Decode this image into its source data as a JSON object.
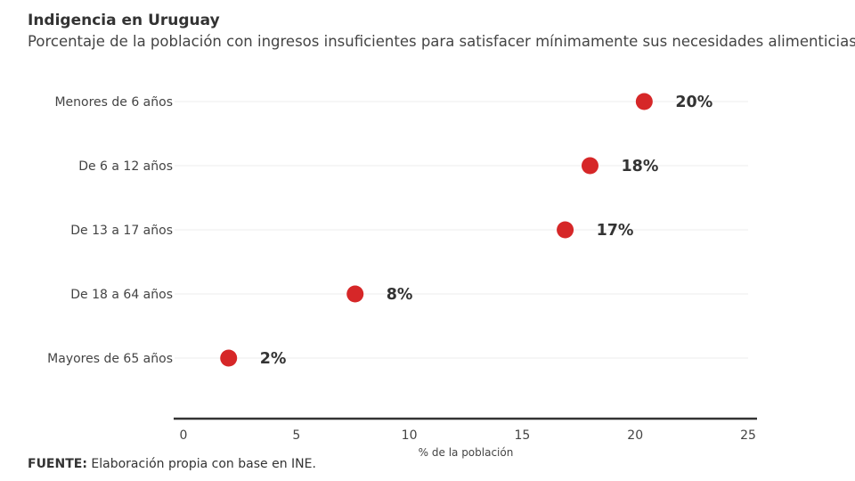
{
  "chart_data": {
    "type": "dot",
    "title": "Indigencia en Uruguay",
    "subtitle": "Porcentaje de la población con ingresos insuficientes para satisfacer mínimamente sus necesidades alimenticias.",
    "categories": [
      "Menores de 6 años",
      "De 6 a 12 años",
      "De 13 a 17 años",
      "De 18 a 64 años",
      "Mayores de 65 años"
    ],
    "values": [
      20.4,
      18.0,
      16.9,
      7.6,
      2.0
    ],
    "data_labels": [
      "20%",
      "18%",
      "17%",
      "8%",
      "2%"
    ],
    "xlabel": "% de la población",
    "xlim": [
      0,
      25
    ],
    "xticks": [
      0,
      5,
      10,
      15,
      20,
      25
    ],
    "xtick_labels": [
      "0",
      "5",
      "10",
      "15",
      "20",
      "25"
    ],
    "grid": "horizontal",
    "color": "#d62728"
  },
  "source": {
    "prefix": "FUENTE:",
    "text": " Elaboración propia con base en INE."
  }
}
